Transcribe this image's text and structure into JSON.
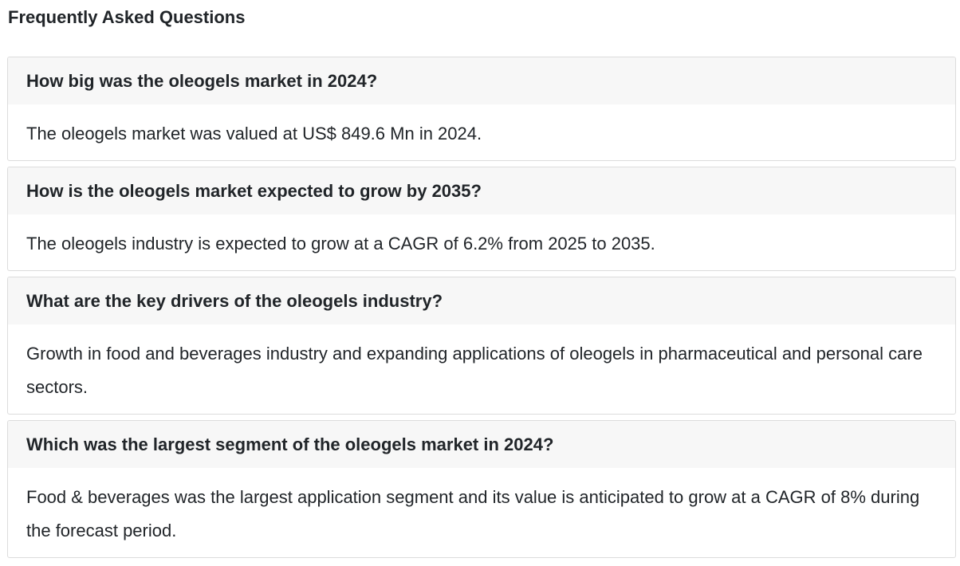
{
  "page": {
    "title": "Frequently Asked Questions"
  },
  "faq": {
    "items": [
      {
        "question": "How big was the oleogels market in 2024?",
        "answer": "The oleogels market was valued at US$ 849.6 Mn in 2024."
      },
      {
        "question": "How is the oleogels market expected to grow by 2035?",
        "answer": "The oleogels industry is expected to grow at a CAGR of 6.2% from 2025 to 2035."
      },
      {
        "question": "What are the key drivers of the oleogels industry?",
        "answer": "Growth in food and beverages industry and expanding applications of oleogels in pharmaceutical and personal care sectors."
      },
      {
        "question": "Which was the largest segment of the oleogels market in 2024?",
        "answer": "Food & beverages was the largest application segment and its value is anticipated to grow at a CAGR of 8% during the forecast period."
      }
    ]
  },
  "colors": {
    "text": "#212529",
    "question_bg": "#f7f7f7",
    "border": "#dcdcdc"
  }
}
